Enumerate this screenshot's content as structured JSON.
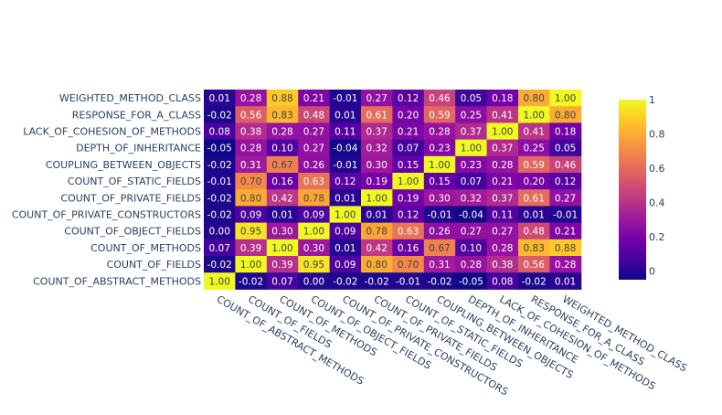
{
  "chart_data": {
    "type": "heatmap",
    "title": "",
    "xlabel": "",
    "ylabel": "",
    "x_categories": [
      "COUNT_OF_ABSTRACT_METHODS",
      "COUNT_OF_FIELDS",
      "COUNT_OF_METHODS",
      "COUNT_OF_OBJECT_FIELDS",
      "COUNT_OF_PRIVATE_CONSTRUCTORS",
      "COUNT_OF_PRIVATE_FIELDS",
      "COUNT_OF_STATIC_FIELDS",
      "COUPLING_BETWEEN_OBJECTS",
      "DEPTH_OF_INHERITANCE",
      "LACK_OF_COHESION_OF_METHODS",
      "RESPONSE_FOR_A_CLASS",
      "WEIGHTED_METHOD_CLASS"
    ],
    "y_categories_top_to_bottom": [
      "WEIGHTED_METHOD_CLASS",
      "RESPONSE_FOR_A_CLASS",
      "LACK_OF_COHESION_OF_METHODS",
      "DEPTH_OF_INHERITANCE",
      "COUPLING_BETWEEN_OBJECTS",
      "COUNT_OF_STATIC_FIELDS",
      "COUNT_OF_PRIVATE_FIELDS",
      "COUNT_OF_PRIVATE_CONSTRUCTORS",
      "COUNT_OF_OBJECT_FIELDS",
      "COUNT_OF_METHODS",
      "COUNT_OF_FIELDS",
      "COUNT_OF_ABSTRACT_METHODS"
    ],
    "cell_labels": [
      [
        "0.01",
        "0.28",
        "0.88",
        "0.21",
        "-0.01",
        "0.27",
        "0.12",
        "0.46",
        "0.05",
        "0.18",
        "0.80",
        "1.00"
      ],
      [
        "-0.02",
        "0.56",
        "0.83",
        "0.48",
        "0.01",
        "0.61",
        "0.20",
        "0.59",
        "0.25",
        "0.41",
        "1.00",
        "0.80"
      ],
      [
        "0.08",
        "0.38",
        "0.28",
        "0.27",
        "0.11",
        "0.37",
        "0.21",
        "0.28",
        "0.37",
        "1.00",
        "0.41",
        "0.18"
      ],
      [
        "-0.05",
        "0.28",
        "0.10",
        "0.27",
        "-0.04",
        "0.32",
        "0.07",
        "0.23",
        "1.00",
        "0.37",
        "0.25",
        "0.05"
      ],
      [
        "-0.02",
        "0.31",
        "0.67",
        "0.26",
        "-0.01",
        "0.30",
        "0.15",
        "1.00",
        "0.23",
        "0.28",
        "0.59",
        "0.46"
      ],
      [
        "-0.01",
        "0.70",
        "0.16",
        "0.63",
        "0.12",
        "0.19",
        "1.00",
        "0.15",
        "0.07",
        "0.21",
        "0.20",
        "0.12"
      ],
      [
        "-0.02",
        "0.80",
        "0.42",
        "0.78",
        "0.01",
        "1.00",
        "0.19",
        "0.30",
        "0.32",
        "0.37",
        "0.61",
        "0.27"
      ],
      [
        "-0.02",
        "0.09",
        "0.01",
        "0.09",
        "1.00",
        "0.01",
        "0.12",
        "-0.01",
        "-0.04",
        "0.11",
        "0.01",
        "-0.01"
      ],
      [
        "0.00",
        "0.95",
        "0.30",
        "1.00",
        "0.09",
        "0.78",
        "0.63",
        "0.26",
        "0.27",
        "0.27",
        "0.48",
        "0.21"
      ],
      [
        "0.07",
        "0.39",
        "1.00",
        "0.30",
        "0.01",
        "0.42",
        "0.16",
        "0.67",
        "0.10",
        "0.28",
        "0.83",
        "0.88"
      ],
      [
        "-0.02",
        "1.00",
        "0.39",
        "0.95",
        "0.09",
        "0.80",
        "0.70",
        "0.31",
        "0.28",
        "0.38",
        "0.56",
        "0.28"
      ],
      [
        "1.00",
        "-0.02",
        "0.07",
        "0.00",
        "-0.02",
        "-0.02",
        "-0.01",
        "-0.02",
        "-0.05",
        "0.08",
        "-0.02",
        "0.01"
      ]
    ],
    "colorscale": [
      "#0d0887",
      "#46039f",
      "#7201a8",
      "#9c179e",
      "#bd3786",
      "#d8576b",
      "#ed7953",
      "#fb9f3a",
      "#fdca26",
      "#f0f921"
    ],
    "zmin": -0.05,
    "zmax": 1.0,
    "colorbar": {
      "tick_values": [
        0,
        0.2,
        0.4,
        0.6,
        0.8,
        1
      ],
      "tick_labels": [
        "0",
        "0.2",
        "0.4",
        "0.6",
        "0.8",
        "1"
      ]
    },
    "grid": false,
    "legend": "colorbar-right"
  }
}
